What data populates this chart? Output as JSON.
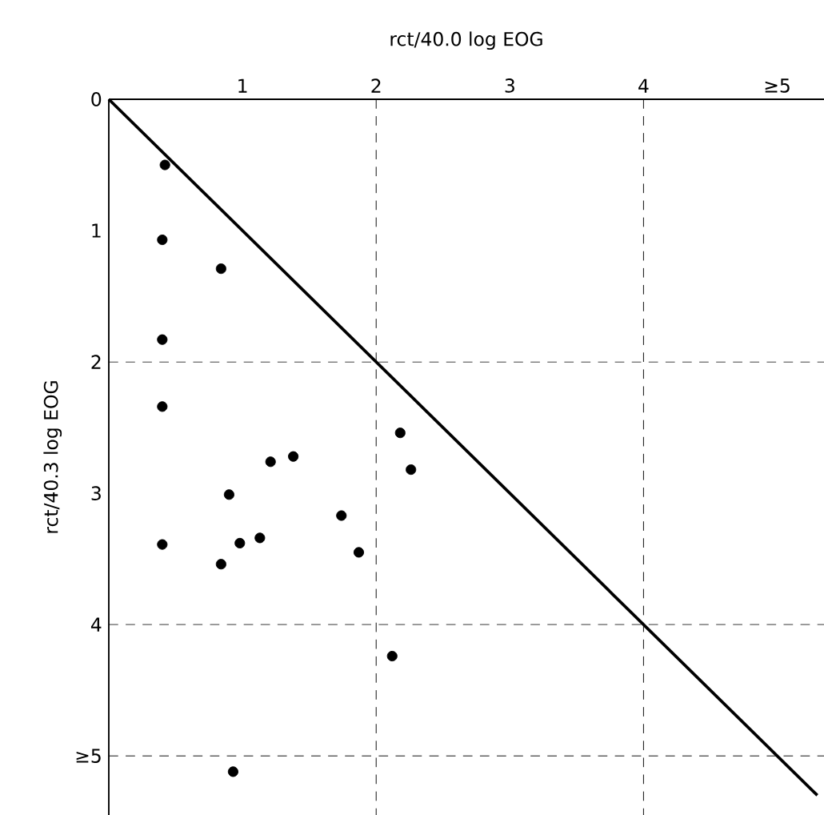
{
  "chart_data": {
    "type": "scatter",
    "xlabel": "rct/40.0   log EOG",
    "ylabel": "rct/40.3   log EOG",
    "xlim": [
      0,
      5.35
    ],
    "ylim": [
      5.45,
      0
    ],
    "xticks": [
      1,
      2,
      3,
      4,
      {
        "value": 5,
        "label": "≥5"
      }
    ],
    "yticks": [
      0,
      1,
      2,
      3,
      4,
      {
        "value": 5,
        "label": "≥5"
      }
    ],
    "series": [
      {
        "color": "#000000",
        "marker": "circle",
        "x": [
          0.42,
          0.4,
          0.4,
          0.4,
          0.4,
          0.84,
          0.9,
          0.84,
          0.98,
          1.13,
          1.21,
          1.38,
          1.74,
          1.87,
          2.18,
          2.26,
          2.12,
          0.93
        ],
        "values": [
          0.5,
          1.07,
          1.83,
          2.34,
          3.39,
          1.29,
          3.01,
          3.54,
          3.38,
          3.34,
          2.76,
          2.72,
          3.17,
          3.45,
          2.54,
          2.82,
          4.24,
          5.12
        ]
      },
      {
        "type": "line",
        "color": "#000000",
        "marker": "none",
        "x": [
          0,
          5.3
        ],
        "values": [
          0,
          5.3
        ]
      }
    ],
    "ref_lines": [
      {
        "axis": "x",
        "value": 2,
        "line_style": "dashed"
      },
      {
        "axis": "x",
        "value": 4,
        "line_style": "dashed"
      },
      {
        "axis": "y",
        "value": 2,
        "line_style": "dashed"
      },
      {
        "axis": "y",
        "value": 4,
        "line_style": "dashed"
      },
      {
        "axis": "y",
        "value": 5,
        "line_style": "dashed"
      }
    ]
  }
}
